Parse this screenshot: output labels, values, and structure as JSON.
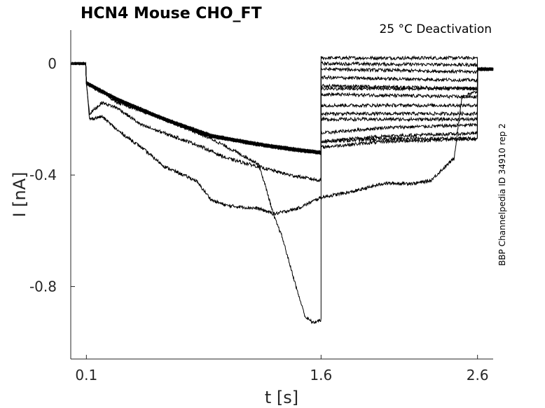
{
  "chart_data": {
    "type": "line",
    "title": "HCN4  Mouse  CHO_FT",
    "subtitle": "25 °C  Deactivation",
    "side_label": "BBP Channelpedia ID 34910 rep 2",
    "xlabel": "t [s]",
    "ylabel": "I [nA]",
    "xlim": [
      0.0,
      2.7
    ],
    "ylim": [
      -1.06,
      0.12
    ],
    "x_ticks": [
      0.1,
      1.6,
      2.6
    ],
    "x_tick_labels": [
      "0.1",
      "1.6",
      "2.6"
    ],
    "y_ticks": [
      0,
      -0.4,
      -0.8
    ],
    "y_tick_labels": [
      "0",
      "-0.4",
      "-0.8"
    ],
    "grid": false,
    "line_color": "#000000",
    "protocol": {
      "baseline_end_s": 0.1,
      "step_end_s": 1.6,
      "tail_end_s": 2.6,
      "segment_points": [
        0.1,
        0.1,
        1.6,
        2.6
      ]
    },
    "series": [
      {
        "step": [
          [
            0.1,
            -0.07
          ],
          [
            0.3,
            -0.13
          ],
          [
            0.6,
            -0.2
          ],
          [
            0.9,
            -0.26
          ],
          [
            1.2,
            -0.29
          ],
          [
            1.45,
            -0.31
          ],
          [
            1.6,
            -0.32
          ]
        ],
        "tail": [
          [
            1.6,
            0.02
          ],
          [
            2.6,
            0.02
          ]
        ],
        "tail_noise": 0.006
      },
      {
        "step": [
          [
            0.1,
            -0.07
          ],
          [
            0.3,
            -0.13
          ],
          [
            0.6,
            -0.2
          ],
          [
            0.9,
            -0.26
          ],
          [
            1.2,
            -0.29
          ],
          [
            1.45,
            -0.31
          ],
          [
            1.6,
            -0.32
          ]
        ],
        "tail": [
          [
            1.6,
            0.0
          ],
          [
            2.6,
            -0.005
          ]
        ],
        "tail_noise": 0.006
      },
      {
        "step": [
          [
            0.1,
            -0.07
          ],
          [
            0.3,
            -0.13
          ],
          [
            0.6,
            -0.2
          ],
          [
            0.9,
            -0.26
          ],
          [
            1.2,
            -0.29
          ],
          [
            1.45,
            -0.31
          ],
          [
            1.6,
            -0.32
          ]
        ],
        "tail": [
          [
            1.6,
            -0.02
          ],
          [
            2.6,
            -0.03
          ]
        ],
        "tail_noise": 0.006
      },
      {
        "step": [
          [
            0.1,
            -0.07
          ],
          [
            0.3,
            -0.13
          ],
          [
            0.6,
            -0.2
          ],
          [
            0.9,
            -0.26
          ],
          [
            1.2,
            -0.29
          ],
          [
            1.45,
            -0.31
          ],
          [
            1.6,
            -0.32
          ]
        ],
        "tail": [
          [
            1.6,
            -0.05
          ],
          [
            2.6,
            -0.06
          ]
        ],
        "tail_noise": 0.006
      },
      {
        "step": [
          [
            0.1,
            -0.07
          ],
          [
            0.3,
            -0.13
          ],
          [
            0.6,
            -0.2
          ],
          [
            0.9,
            -0.26
          ],
          [
            1.2,
            -0.29
          ],
          [
            1.45,
            -0.31
          ],
          [
            1.6,
            -0.32
          ]
        ],
        "tail": [
          [
            1.6,
            -0.08
          ],
          [
            2.6,
            -0.09
          ]
        ],
        "tail_noise": 0.006
      },
      {
        "step": [
          [
            0.1,
            -0.07
          ],
          [
            0.3,
            -0.13
          ],
          [
            0.6,
            -0.2
          ],
          [
            0.9,
            -0.26
          ],
          [
            1.2,
            -0.29
          ],
          [
            1.45,
            -0.31
          ],
          [
            1.6,
            -0.32
          ]
        ],
        "tail": [
          [
            1.6,
            -0.11
          ],
          [
            2.6,
            -0.12
          ]
        ],
        "tail_noise": 0.006
      },
      {
        "step": [
          [
            0.1,
            -0.07
          ],
          [
            0.3,
            -0.13
          ],
          [
            0.6,
            -0.2
          ],
          [
            0.9,
            -0.26
          ],
          [
            1.2,
            -0.29
          ],
          [
            1.45,
            -0.31
          ],
          [
            1.6,
            -0.32
          ]
        ],
        "tail": [
          [
            1.6,
            -0.15
          ],
          [
            2.6,
            -0.15
          ]
        ],
        "tail_noise": 0.006
      },
      {
        "step": [
          [
            0.1,
            -0.07
          ],
          [
            0.3,
            -0.13
          ],
          [
            0.6,
            -0.2
          ],
          [
            0.9,
            -0.26
          ],
          [
            1.2,
            -0.29
          ],
          [
            1.45,
            -0.31
          ],
          [
            1.6,
            -0.32
          ]
        ],
        "tail": [
          [
            1.6,
            -0.18
          ],
          [
            2.6,
            -0.18
          ]
        ],
        "tail_noise": 0.006
      },
      {
        "step": [
          [
            0.1,
            -0.07
          ],
          [
            0.3,
            -0.13
          ],
          [
            0.6,
            -0.2
          ],
          [
            0.9,
            -0.26
          ],
          [
            1.2,
            -0.29
          ],
          [
            1.45,
            -0.31
          ],
          [
            1.6,
            -0.32
          ]
        ],
        "tail": [
          [
            1.6,
            -0.2
          ],
          [
            2.6,
            -0.2
          ]
        ],
        "tail_noise": 0.006
      },
      {
        "step": [
          [
            0.1,
            -0.07
          ],
          [
            0.3,
            -0.13
          ],
          [
            0.6,
            -0.2
          ],
          [
            0.9,
            -0.26
          ],
          [
            1.2,
            -0.29
          ],
          [
            1.45,
            -0.31
          ],
          [
            1.6,
            -0.32
          ]
        ],
        "tail": [
          [
            1.6,
            -0.25
          ],
          [
            2.0,
            -0.23
          ],
          [
            2.6,
            -0.22
          ]
        ],
        "tail_noise": 0.006
      },
      {
        "step": [
          [
            0.1,
            -0.07
          ],
          [
            0.3,
            -0.13
          ],
          [
            0.6,
            -0.2
          ],
          [
            0.9,
            -0.26
          ],
          [
            1.2,
            -0.29
          ],
          [
            1.45,
            -0.31
          ],
          [
            1.6,
            -0.32
          ]
        ],
        "tail": [
          [
            1.6,
            -0.28
          ],
          [
            2.0,
            -0.26
          ],
          [
            2.6,
            -0.25
          ]
        ],
        "tail_noise": 0.006
      },
      {
        "step": [
          [
            0.1,
            -0.07
          ],
          [
            0.3,
            -0.13
          ],
          [
            0.6,
            -0.2
          ],
          [
            0.9,
            -0.26
          ],
          [
            1.2,
            -0.29
          ],
          [
            1.45,
            -0.31
          ],
          [
            1.6,
            -0.32
          ]
        ],
        "tail": [
          [
            1.6,
            -0.3
          ],
          [
            2.0,
            -0.28
          ],
          [
            2.6,
            -0.27
          ]
        ],
        "tail_noise": 0.006
      },
      {
        "step": [
          [
            0.1,
            -0.07
          ],
          [
            0.12,
            -0.18
          ],
          [
            0.2,
            -0.14
          ],
          [
            0.3,
            -0.16
          ],
          [
            0.45,
            -0.22
          ],
          [
            0.6,
            -0.25
          ],
          [
            0.8,
            -0.29
          ],
          [
            1.0,
            -0.34
          ],
          [
            1.2,
            -0.37
          ],
          [
            1.4,
            -0.4
          ],
          [
            1.6,
            -0.42
          ]
        ],
        "tail": [
          [
            1.6,
            -0.28
          ],
          [
            2.0,
            -0.27
          ],
          [
            2.6,
            -0.27
          ]
        ],
        "tail_noise": 0.007
      },
      {
        "step": [
          [
            0.1,
            -0.07
          ],
          [
            0.12,
            -0.2
          ],
          [
            0.2,
            -0.19
          ],
          [
            0.3,
            -0.24
          ],
          [
            0.45,
            -0.3
          ],
          [
            0.6,
            -0.37
          ],
          [
            0.8,
            -0.42
          ],
          [
            0.9,
            -0.49
          ],
          [
            1.0,
            -0.51
          ],
          [
            1.2,
            -0.52
          ],
          [
            1.3,
            -0.54
          ],
          [
            1.45,
            -0.52
          ],
          [
            1.6,
            -0.48
          ],
          [
            1.8,
            -0.46
          ],
          [
            2.0,
            -0.43
          ],
          [
            2.2,
            -0.43
          ],
          [
            2.3,
            -0.42
          ],
          [
            2.45,
            -0.34
          ],
          [
            2.5,
            -0.12
          ],
          [
            2.6,
            -0.1
          ]
        ],
        "tail": [],
        "tail_noise": 0.006
      },
      {
        "step": [
          [
            0.1,
            -0.07
          ],
          [
            0.3,
            -0.14
          ],
          [
            0.6,
            -0.2
          ],
          [
            0.9,
            -0.27
          ],
          [
            1.1,
            -0.33
          ],
          [
            1.2,
            -0.36
          ],
          [
            1.25,
            -0.45
          ],
          [
            1.3,
            -0.55
          ],
          [
            1.35,
            -0.62
          ],
          [
            1.4,
            -0.72
          ],
          [
            1.45,
            -0.82
          ],
          [
            1.5,
            -0.91
          ],
          [
            1.55,
            -0.93
          ],
          [
            1.6,
            -0.92
          ]
        ],
        "tail": [
          [
            1.6,
            -0.09
          ],
          [
            2.6,
            -0.09
          ]
        ],
        "tail_noise": 0.006
      }
    ]
  }
}
